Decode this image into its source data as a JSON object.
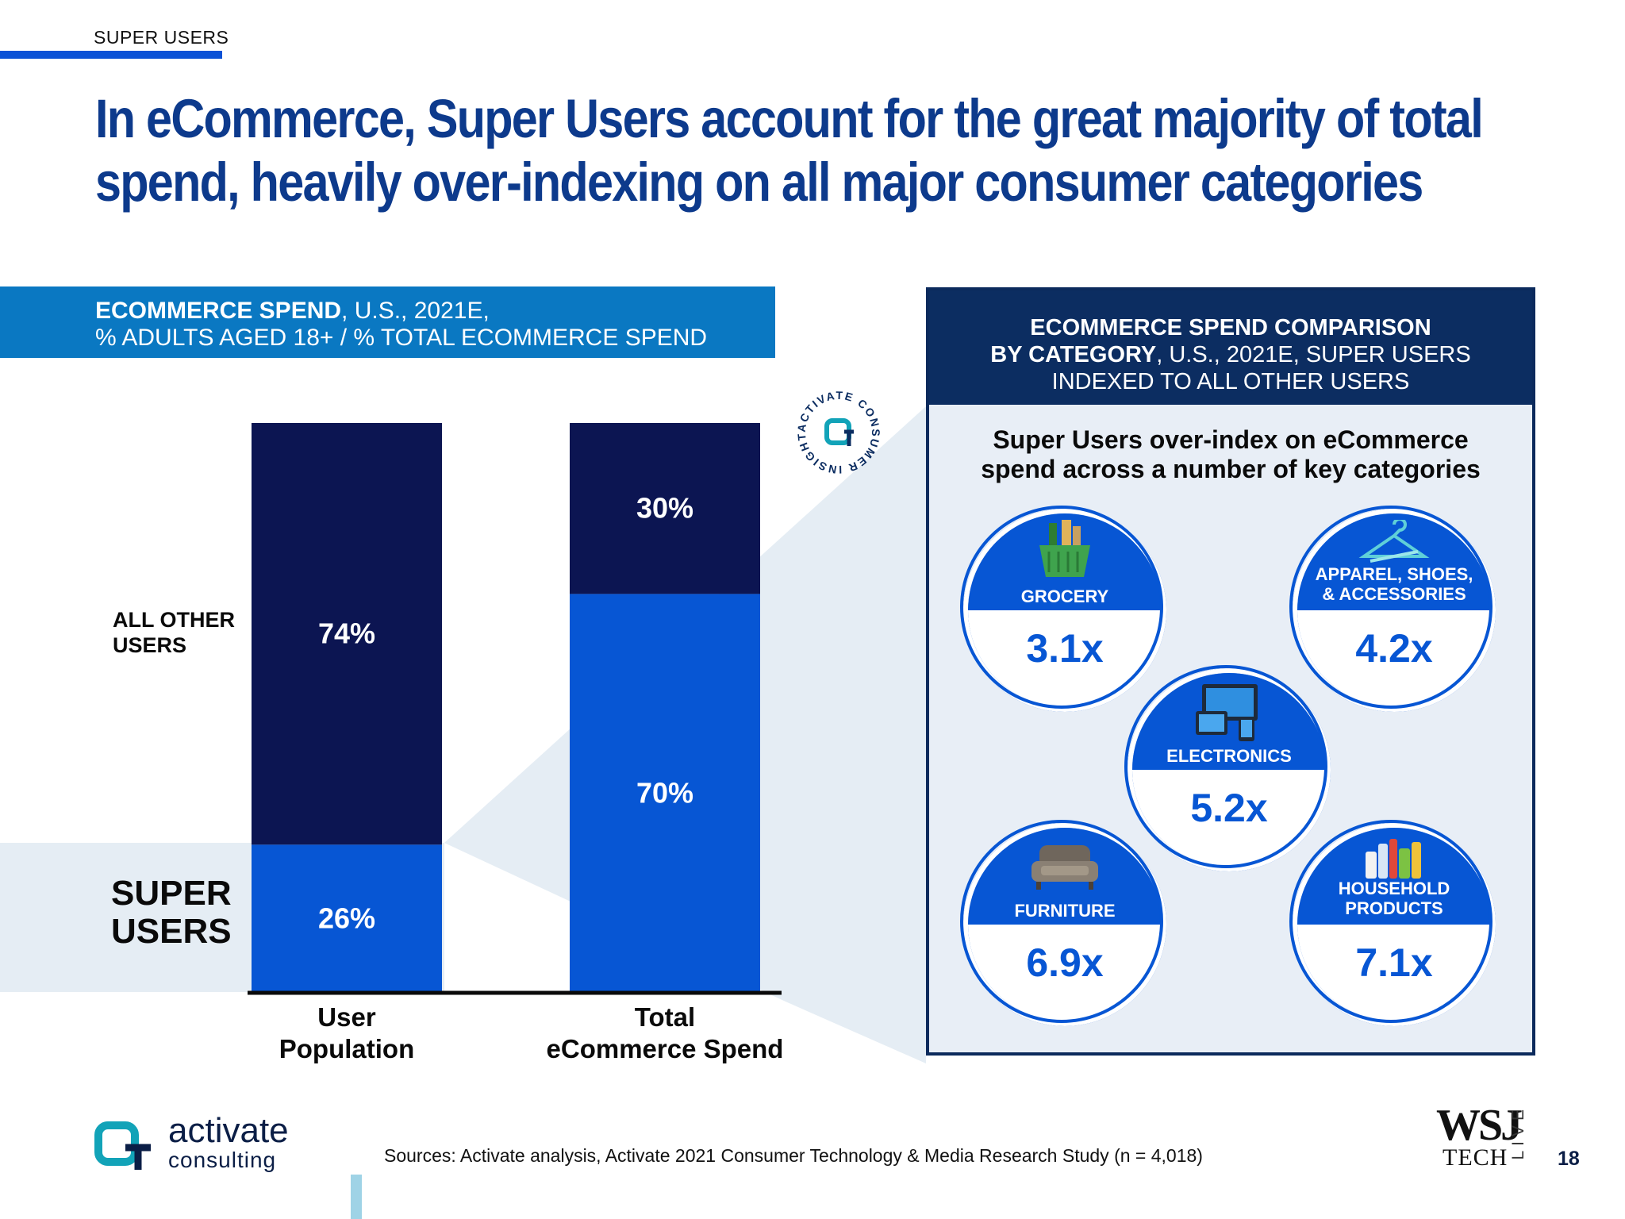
{
  "section_tag": "SUPER USERS",
  "headline_line1": "In eCommerce, Super Users account for the great majority of total",
  "headline_line2": "spend, heavily over-indexing on all major consumer categories",
  "left_banner": {
    "bold": "ECOMMERCE SPEND",
    "rest": ", U.S., 2021E,",
    "line2": "% ADULTS AGED 18+ / % TOTAL ECOMMERCE SPEND"
  },
  "chart_data": [
    {
      "type": "bar",
      "stacked": true,
      "categories": [
        "User Population",
        "Total eCommerce Spend"
      ],
      "category_lines": [
        [
          "User",
          "Population"
        ],
        [
          "Total",
          "eCommerce Spend"
        ]
      ],
      "series": [
        {
          "name": "SUPER USERS",
          "values": [
            26,
            70
          ],
          "labels": [
            "26%",
            "70%"
          ],
          "color": "#0756d4"
        },
        {
          "name": "ALL OTHER USERS",
          "values": [
            74,
            30
          ],
          "labels": [
            "74%",
            "30%"
          ],
          "color": "#0c1552"
        }
      ],
      "ylim": [
        0,
        100
      ]
    },
    {
      "type": "table",
      "title_bold": "ECOMMERCE SPEND COMPARISON",
      "title_line2_bold": "BY CATEGORY",
      "title_line2_rest": ", U.S., 2021E, SUPER USERS",
      "title_line3": "INDEXED TO ALL OTHER USERS",
      "subtitle_line1": "Super Users over-index on eCommerce",
      "subtitle_line2": "spend across a number of key categories",
      "categories": [
        {
          "label_lines": [
            "GROCERY"
          ],
          "value": "3.1x",
          "icon": "grocery-basket-icon"
        },
        {
          "label_lines": [
            "APPAREL, SHOES,",
            "& ACCESSORIES"
          ],
          "value": "4.2x",
          "icon": "clothes-hanger-icon"
        },
        {
          "label_lines": [
            "ELECTRONICS"
          ],
          "value": "5.2x",
          "icon": "devices-icon"
        },
        {
          "label_lines": [
            "FURNITURE"
          ],
          "value": "6.9x",
          "icon": "sofa-icon"
        },
        {
          "label_lines": [
            "HOUSEHOLD",
            "PRODUCTS"
          ],
          "value": "7.1x",
          "icon": "cleaning-products-icon"
        }
      ]
    }
  ],
  "labels": {
    "all_other_line1": "ALL OTHER",
    "all_other_line2": "USERS",
    "super_line1": "SUPER",
    "super_line2": "USERS"
  },
  "seal_text": "ACTIVATE CONSUMER INSIGHT",
  "logo": {
    "word": "activate",
    "sub": "consulting"
  },
  "sources": "Sources: Activate analysis, Activate 2021 Consumer Technology & Media Research Study (n = 4,018)",
  "wsj": {
    "brand": "WSJ",
    "tech": "TECH",
    "live": "LIVE"
  },
  "page_number": "18",
  "colors": {
    "super": "#0756d4",
    "other": "#0c1552",
    "banner": "#0a78c2",
    "panel_head": "#0c2d61"
  }
}
